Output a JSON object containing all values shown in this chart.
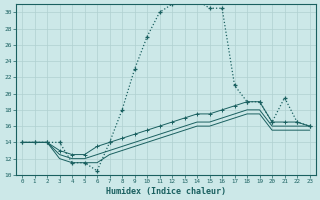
{
  "xlabel": "Humidex (Indice chaleur)",
  "xlim": [
    -0.5,
    23.5
  ],
  "ylim": [
    10,
    31
  ],
  "xticks": [
    0,
    1,
    2,
    3,
    4,
    5,
    6,
    7,
    8,
    9,
    10,
    11,
    12,
    13,
    14,
    15,
    16,
    17,
    18,
    19,
    20,
    21,
    22,
    23
  ],
  "yticks": [
    10,
    12,
    14,
    16,
    18,
    20,
    22,
    24,
    26,
    28,
    30
  ],
  "bg_color": "#cce8e8",
  "grid_color": "#b0d0d0",
  "line_color": "#1a6060",
  "line1_x": [
    0,
    1,
    2,
    3,
    4,
    5,
    6,
    7,
    8,
    9,
    10,
    11,
    12,
    13,
    14,
    15,
    16,
    17,
    18,
    19,
    20,
    21,
    22,
    23
  ],
  "line1_y": [
    14,
    14,
    14,
    14,
    11.5,
    11.5,
    10.5,
    14,
    18,
    23,
    27,
    30,
    31,
    31.5,
    31.5,
    30.5,
    30.5,
    21,
    19,
    19,
    16.5,
    19.5,
    16.5,
    16
  ],
  "line2_x": [
    0,
    1,
    2,
    3,
    4,
    5,
    6,
    7,
    8,
    9,
    10,
    11,
    12,
    13,
    14,
    15,
    16,
    17,
    18,
    19,
    20,
    21,
    22,
    23
  ],
  "line2_y": [
    14,
    14,
    14,
    13,
    12.5,
    12.5,
    13.5,
    14,
    14.5,
    15,
    15.5,
    16,
    16.5,
    17,
    17.5,
    17.5,
    18,
    18.5,
    19,
    19,
    16.5,
    16.5,
    16.5,
    16
  ],
  "line3_x": [
    0,
    1,
    2,
    3,
    4,
    5,
    6,
    7,
    8,
    9,
    10,
    11,
    12,
    13,
    14,
    15,
    16,
    17,
    18,
    19,
    20,
    21,
    22,
    23
  ],
  "line3_y": [
    14,
    14,
    14,
    12.5,
    12,
    12,
    12.5,
    13,
    13.5,
    14,
    14.5,
    15,
    15.5,
    16,
    16.5,
    16.5,
    17,
    17.5,
    18,
    18,
    16,
    16,
    16,
    16
  ],
  "line4_x": [
    0,
    1,
    2,
    3,
    4,
    5,
    6,
    7,
    8,
    9,
    10,
    11,
    12,
    13,
    14,
    15,
    16,
    17,
    18,
    19,
    20,
    21,
    22,
    23
  ],
  "line4_y": [
    14,
    14,
    14,
    12,
    11.5,
    11.5,
    11.5,
    12.5,
    13,
    13.5,
    14,
    14.5,
    15,
    15.5,
    16,
    16,
    16.5,
    17,
    17.5,
    17.5,
    15.5,
    15.5,
    15.5,
    15.5
  ]
}
